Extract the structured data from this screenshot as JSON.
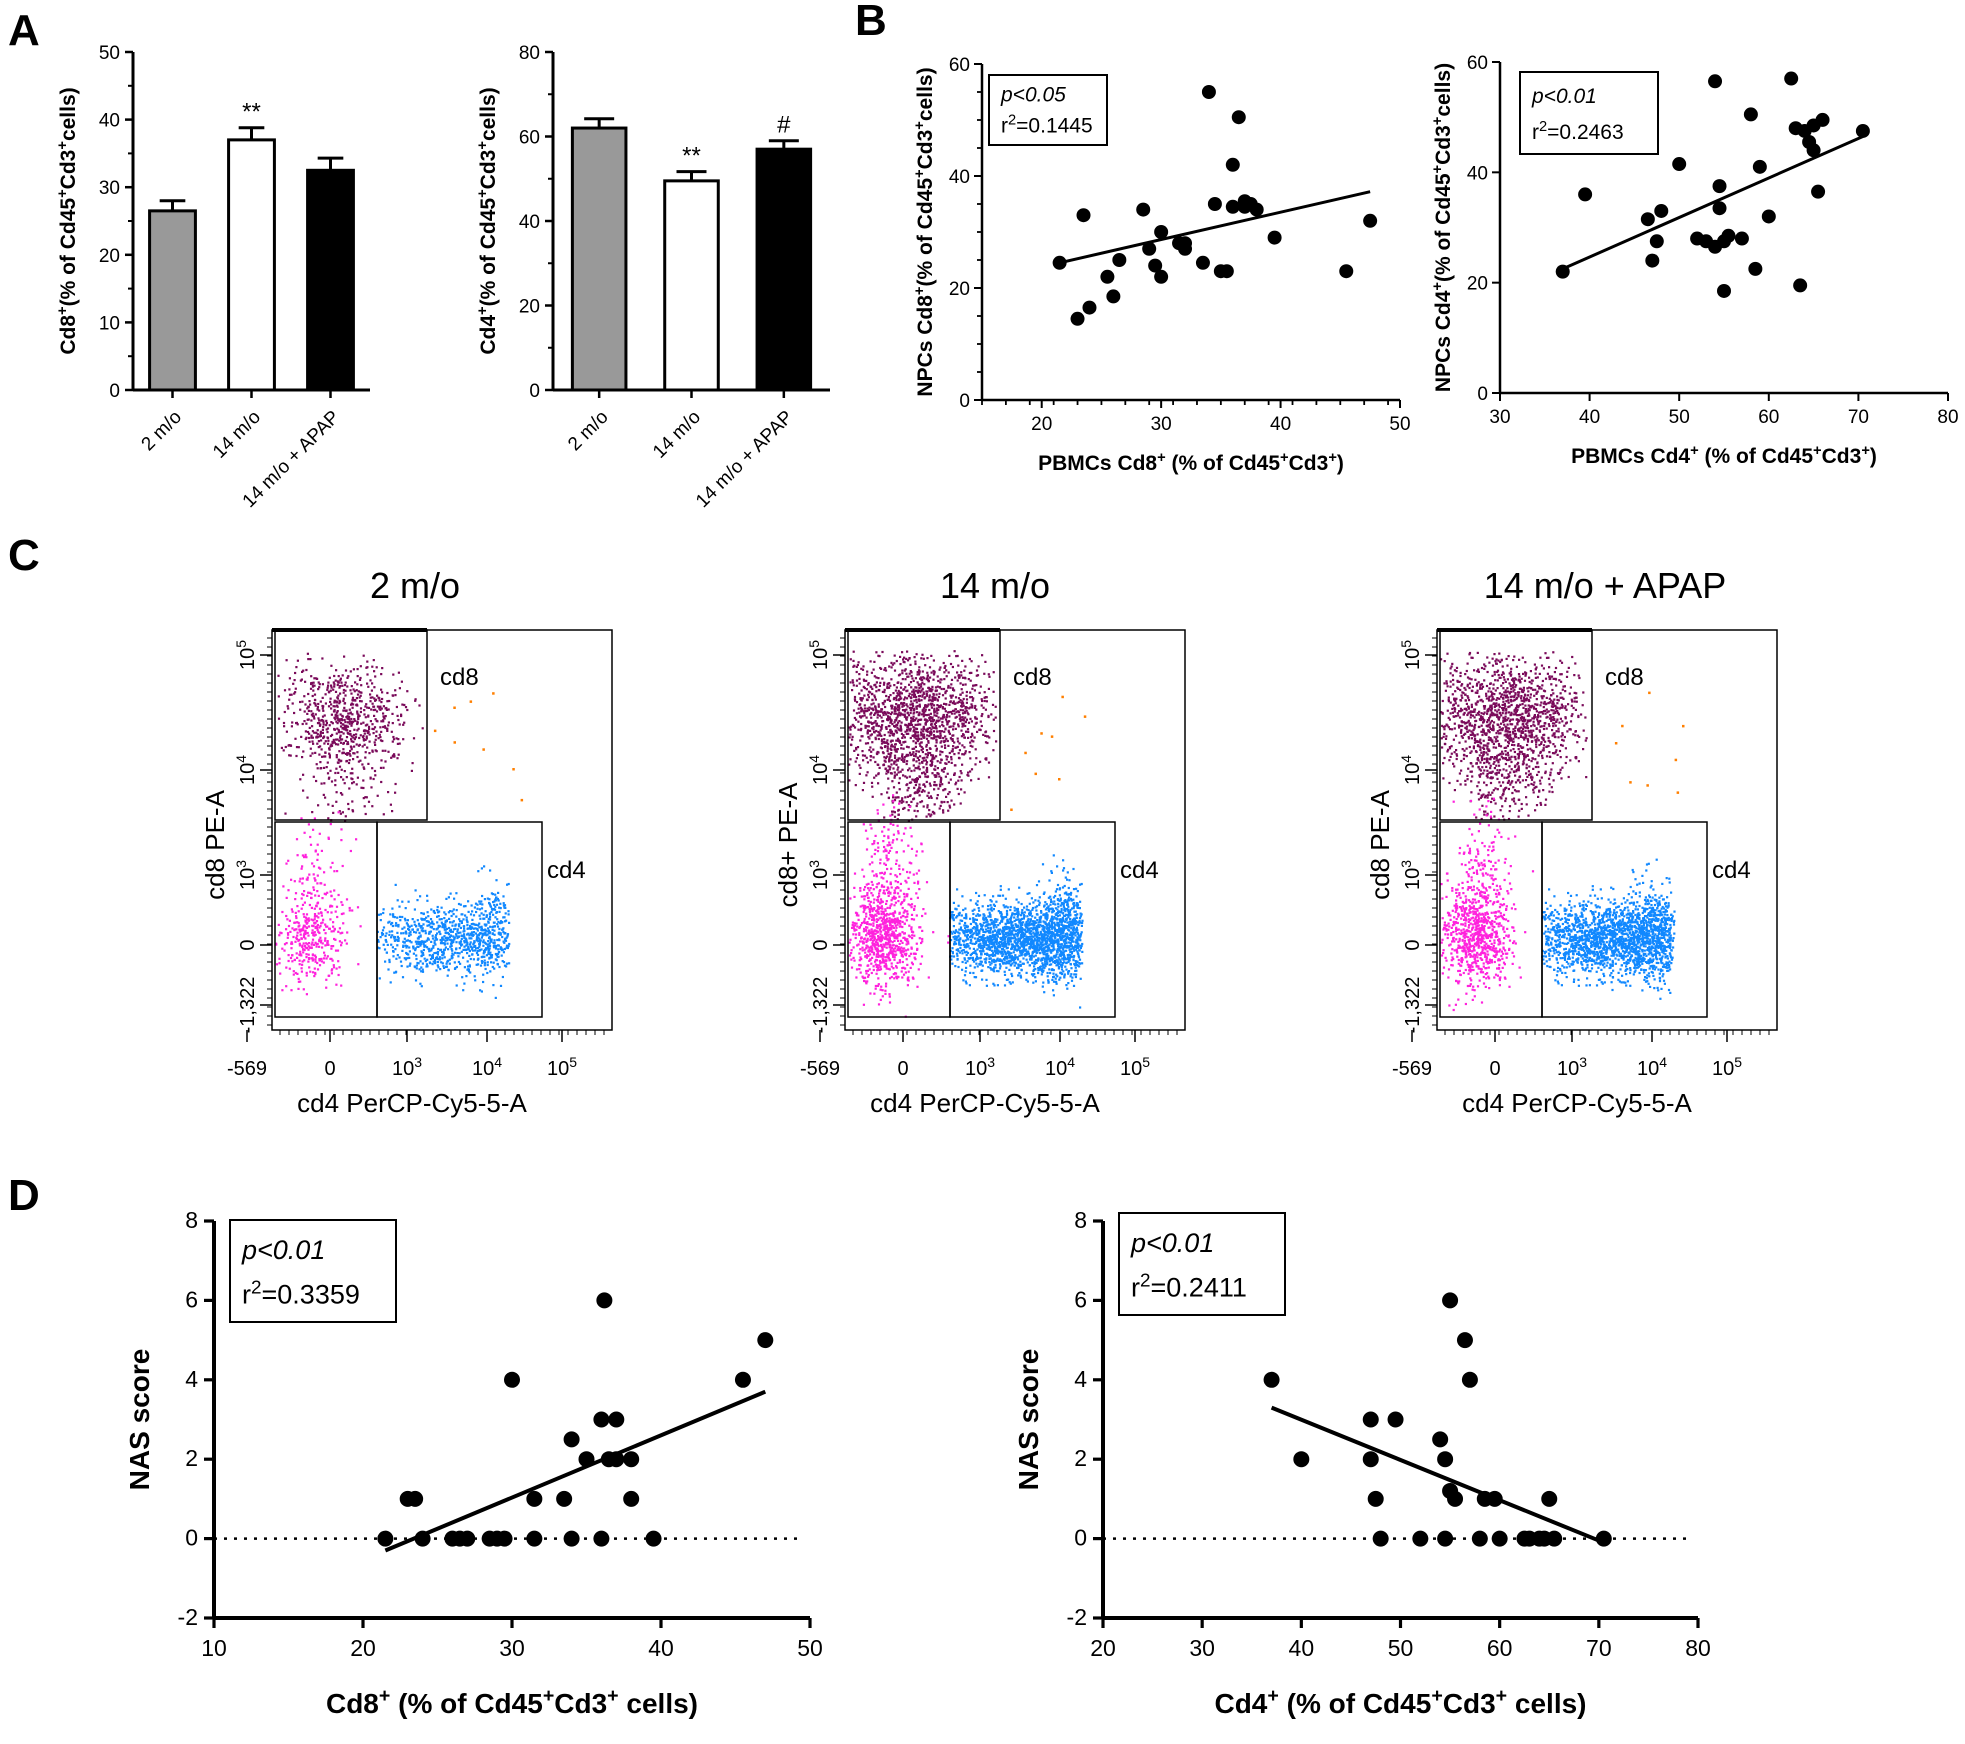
{
  "panel_labels": {
    "A": "A",
    "B": "B",
    "C": "C",
    "D": "D"
  },
  "chart_data": [
    {
      "id": "A1",
      "type": "bar",
      "panel": "A",
      "categories": [
        "2 m/o",
        "14 m/o",
        "14 m/o + APAP"
      ],
      "values": [
        26.5,
        37,
        32.5
      ],
      "errors": [
        1.5,
        1.8,
        1.8
      ],
      "colors": [
        "#999999",
        "#ffffff",
        "#000000"
      ],
      "significance": [
        "",
        "**",
        ""
      ],
      "ylabel_parts": [
        "Cd8",
        "+",
        "(% of Cd45",
        "+",
        "Cd3",
        "+",
        "cells)"
      ],
      "ylim": [
        0,
        50
      ],
      "yticks": [
        0,
        10,
        20,
        30,
        40,
        50
      ],
      "grid": false
    },
    {
      "id": "A2",
      "type": "bar",
      "panel": "A",
      "categories": [
        "2 m/o",
        "14 m/o",
        "14 m/o + APAP"
      ],
      "values": [
        62,
        49.5,
        57
      ],
      "errors": [
        2.2,
        2.2,
        2
      ],
      "colors": [
        "#999999",
        "#ffffff",
        "#000000"
      ],
      "significance": [
        "",
        "**",
        "#"
      ],
      "ylabel_parts": [
        "Cd4",
        "+",
        "(% of Cd45",
        "+",
        "Cd3",
        "+",
        "cells)"
      ],
      "ylim": [
        0,
        80
      ],
      "yticks": [
        0,
        20,
        40,
        60,
        80
      ],
      "grid": false
    },
    {
      "id": "B1",
      "type": "scatter",
      "panel": "B",
      "x": [
        21.5,
        23,
        23.5,
        24,
        25.5,
        26,
        26.5,
        28.5,
        29,
        29.5,
        30,
        30,
        31.5,
        32,
        32,
        33.5,
        34,
        34.5,
        35,
        35.5,
        36,
        36,
        36.5,
        37,
        37,
        37.5,
        38,
        39.5,
        45.5,
        47.5
      ],
      "y": [
        24.5,
        14.5,
        33,
        16.5,
        22,
        18.5,
        25,
        34,
        27,
        24,
        30,
        22,
        28,
        27,
        28,
        24.5,
        55,
        35,
        23,
        23,
        42,
        34.5,
        50.5,
        35.5,
        34.5,
        35,
        34,
        29,
        23,
        32
      ],
      "trend": {
        "x": [
          21.5,
          47.5
        ],
        "y": [
          24.5,
          37.2
        ]
      },
      "stats": {
        "p": "p<0.05",
        "r2_prefix": "r",
        "r2_sup": "2",
        "r2_value": "=0.1445"
      },
      "xlabel_parts": [
        "PBMCs Cd8",
        "+",
        " (% of Cd45",
        "+",
        "Cd3",
        "+",
        ")"
      ],
      "ylabel_parts": [
        "NPCs Cd8",
        "+",
        "(% of Cd45",
        "+",
        "Cd3",
        "+",
        "cells)"
      ],
      "xlim": [
        15,
        50
      ],
      "ylim": [
        0,
        60
      ],
      "xticks": [
        20,
        30,
        40,
        50
      ],
      "yticks": [
        0,
        20,
        40,
        60
      ],
      "grid": false
    },
    {
      "id": "B2",
      "type": "scatter",
      "panel": "B",
      "x": [
        37,
        39.5,
        46.5,
        47,
        47.5,
        48,
        50,
        52,
        53,
        54,
        54,
        54.5,
        54.5,
        55,
        55,
        55.5,
        57,
        58,
        58.5,
        59,
        60,
        62.5,
        63,
        63.5,
        64,
        64.5,
        65,
        65,
        65.5,
        66,
        70.5
      ],
      "y": [
        22,
        36,
        31.5,
        24,
        27.5,
        33,
        41.5,
        28,
        27.5,
        26.5,
        56.5,
        37.5,
        33.5,
        27.5,
        18.5,
        28.5,
        28,
        50.5,
        22.5,
        41,
        32,
        57,
        48,
        19.5,
        47.5,
        45.5,
        48.5,
        44,
        36.5,
        49.5,
        47.5
      ],
      "trend": {
        "x": [
          37,
          70.5
        ],
        "y": [
          22.5,
          46.5
        ]
      },
      "stats": {
        "p": "p<0.01",
        "r2_prefix": "r",
        "r2_sup": "2",
        "r2_value": "=0.2463"
      },
      "xlabel_parts": [
        "PBMCs Cd4",
        "+",
        " (% of Cd45",
        "+",
        "Cd3",
        "+",
        ")"
      ],
      "ylabel_parts": [
        "NPCs Cd4",
        "+",
        "(% of Cd45",
        "+",
        "Cd3",
        "+",
        "cells)"
      ],
      "xlim": [
        30,
        80
      ],
      "ylim": [
        0,
        60
      ],
      "xticks": [
        30,
        40,
        50,
        60,
        70,
        80
      ],
      "yticks": [
        0,
        20,
        40,
        60
      ],
      "grid": false
    },
    {
      "id": "D1",
      "type": "scatter",
      "panel": "D",
      "x": [
        21.5,
        23,
        23.5,
        24,
        26,
        26.5,
        27,
        28.5,
        29,
        29.5,
        30,
        31.5,
        31.5,
        33.5,
        34,
        34,
        35,
        36,
        36,
        36.5,
        37,
        37,
        38,
        38,
        39.5,
        45.5,
        47
      ],
      "y": [
        0,
        1,
        1,
        0,
        0,
        0,
        0,
        0,
        0,
        0,
        4,
        1,
        0,
        1,
        0,
        2.5,
        2,
        0,
        3,
        2,
        2,
        3,
        1,
        2,
        0,
        4,
        5
      ],
      "extra_points": [
        {
          "x": 36.2,
          "y": 6
        }
      ],
      "trend": {
        "x": [
          21.5,
          47
        ],
        "y": [
          -0.3,
          3.7
        ]
      },
      "zero_line": true,
      "stats": {
        "p": "p<0.01",
        "r2_prefix": "r",
        "r2_sup": "2",
        "r2_value": "=0.3359"
      },
      "xlabel_parts": [
        "Cd8",
        "+",
        " (% of Cd45",
        "+",
        "Cd3",
        "+",
        " cells)"
      ],
      "ylabel": "NAS score",
      "xlim": [
        10,
        50
      ],
      "ylim": [
        -2,
        8
      ],
      "xticks": [
        10,
        20,
        30,
        40,
        50
      ],
      "yticks": [
        -2,
        0,
        2,
        4,
        6,
        8
      ],
      "grid": false
    },
    {
      "id": "D2",
      "type": "scatter",
      "panel": "D",
      "x": [
        37,
        40,
        47,
        47,
        47.5,
        48,
        49.5,
        52,
        54,
        54.5,
        54.5,
        55,
        55,
        55.5,
        56.5,
        57,
        58,
        58.5,
        59.5,
        60,
        62.5,
        63,
        64,
        64.5,
        65,
        65.5,
        70.5
      ],
      "y": [
        4,
        2,
        3,
        2,
        1,
        0,
        3,
        0,
        2.5,
        0,
        2,
        1.2,
        6,
        1,
        5,
        4,
        0,
        1,
        1,
        0,
        0,
        0,
        0,
        0,
        1,
        0,
        0
      ],
      "trend": {
        "x": [
          37,
          70.5
        ],
        "y": [
          3.3,
          -0.1
        ]
      },
      "zero_line": true,
      "stats": {
        "p": "p<0.01",
        "r2_prefix": "r",
        "r2_sup": "2",
        "r2_value": "=0.2411"
      },
      "xlabel_parts": [
        "Cd4",
        "+",
        " (% of Cd45",
        "+",
        "Cd3",
        "+",
        " cells)"
      ],
      "ylabel": "NAS score",
      "xlim": [
        20,
        80
      ],
      "ylim": [
        -2,
        8
      ],
      "xticks": [
        20,
        30,
        40,
        50,
        60,
        70,
        80
      ],
      "yticks": [
        -2,
        0,
        2,
        4,
        6,
        8
      ],
      "grid": false
    }
  ],
  "flow_panels": [
    {
      "id": "fc1",
      "title": "2 m/o",
      "ylabel": "cd8 PE-A",
      "xlabel": "cd4 PerCP-Cy5-5-A",
      "gate_cd8": "cd8",
      "gate_cd4": "cd4",
      "density": 1
    },
    {
      "id": "fc2",
      "title": "14 m/o",
      "ylabel": "cd8+ PE-A",
      "xlabel": "cd4 PerCP-Cy5-5-A",
      "gate_cd8": "cd8",
      "gate_cd4": "cd4",
      "density": 2.2
    },
    {
      "id": "fc3",
      "title": "14 m/o + APAP",
      "ylabel": "cd8 PE-A",
      "xlabel": "cd4 PerCP-Cy5-5-A",
      "gate_cd8": "cd8",
      "gate_cd4": "cd4",
      "density": 2
    }
  ],
  "flow_axis": {
    "yticks": [
      "10^5",
      "10^4",
      "10^3",
      "0",
      "-1,322"
    ],
    "xticks": [
      "-569",
      "0",
      "10^3",
      "10^4",
      "10^5"
    ]
  },
  "colors": {
    "cd8": "#7a0a5a",
    "neg": "#ff22dd",
    "cd4": "#1188ff",
    "orange": "#ff7f00"
  }
}
